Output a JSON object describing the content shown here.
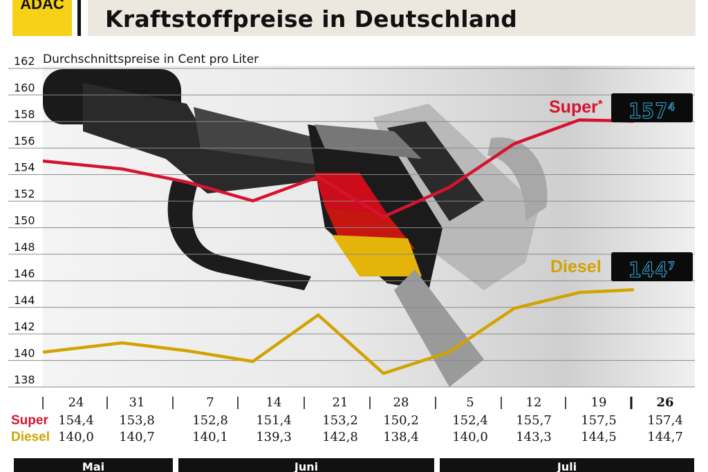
{
  "header": {
    "logo_text": "ADAC",
    "title": "Kraftstoffpreise in Deutschland",
    "accent_color": "#f6d117"
  },
  "chart_data": {
    "type": "line",
    "title": "Kraftstoffpreise in Deutschland",
    "ylabel": "Durchschnittspreise in Cent pro Liter",
    "ylim": [
      138,
      162
    ],
    "yticks": [
      138,
      140,
      142,
      144,
      146,
      148,
      150,
      152,
      154,
      156,
      158,
      160,
      162
    ],
    "grid": true,
    "categories": [
      "24",
      "31",
      "7",
      "14",
      "21",
      "28",
      "5",
      "12",
      "19",
      "26"
    ],
    "months": [
      {
        "name": "Mai",
        "categories": [
          "24",
          "31"
        ]
      },
      {
        "name": "Juni",
        "categories": [
          "7",
          "14",
          "21",
          "28"
        ]
      },
      {
        "name": "Juli",
        "categories": [
          "5",
          "12",
          "19",
          "26"
        ]
      }
    ],
    "series": [
      {
        "name": "Super",
        "color": "#d6132f",
        "values": [
          154.4,
          153.8,
          152.8,
          151.4,
          153.2,
          150.2,
          152.4,
          155.7,
          157.5,
          157.4
        ],
        "labels": [
          "154,4",
          "153,8",
          "152,8",
          "151,4",
          "153,2",
          "150,2",
          "152,4",
          "155,7",
          "157,5",
          "157,4"
        ]
      },
      {
        "name": "Diesel",
        "color": "#d2a300",
        "values": [
          140.0,
          140.7,
          140.1,
          139.3,
          142.8,
          138.4,
          140.0,
          143.3,
          144.5,
          144.7
        ],
        "labels": [
          "140,0",
          "140,7",
          "140,1",
          "139,3",
          "142,8",
          "138,4",
          "140,0",
          "143,3",
          "144,5",
          "144,7"
        ]
      }
    ],
    "annotations": {
      "super_label": "Super",
      "super_marker": "*",
      "super_display": "157",
      "super_display_sup": "4",
      "diesel_label": "Diesel",
      "diesel_display": "144",
      "diesel_display_sup": "7"
    }
  },
  "table": {
    "row_super": "Super",
    "row_diesel": "Diesel"
  }
}
